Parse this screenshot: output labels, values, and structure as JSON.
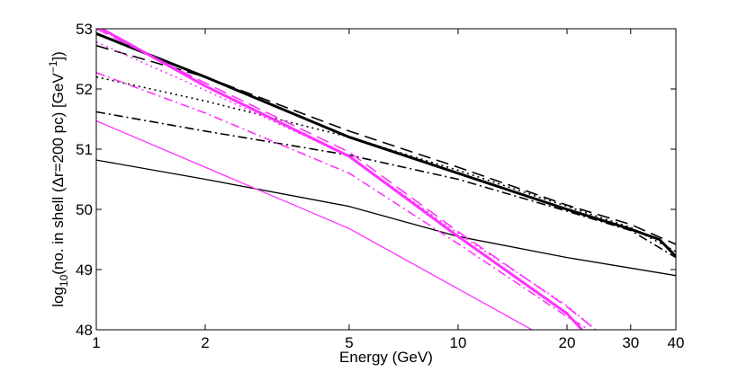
{
  "chart_data": {
    "type": "line",
    "title": "",
    "xlabel": "Energy (GeV)",
    "ylabel": "log10(no. in shell (Δr=200 pc) [GeV⁻¹])",
    "ylabel_parts": {
      "log": "log",
      "sub": "10",
      "mid": "(no. in shell (Δr=200 pc) [GeV",
      "sup": "−1",
      "end": "])"
    },
    "xscale": "log",
    "xlim": [
      1,
      40
    ],
    "ylim": [
      48,
      53
    ],
    "xticks": [
      1,
      2,
      5,
      10,
      20,
      30,
      40
    ],
    "xtick_labels": [
      "1",
      "2",
      "5",
      "10",
      "20",
      "30",
      "40"
    ],
    "yticks": [
      48,
      49,
      50,
      51,
      52,
      53
    ],
    "ytick_labels": [
      "48",
      "49",
      "50",
      "51",
      "52",
      "53"
    ],
    "grid": false,
    "legend": "none",
    "colors": {
      "black": "#000000",
      "magenta": "#ff33ff"
    },
    "series": [
      {
        "name": "black-thick-solid",
        "color": "black",
        "style": "solid",
        "weight": "thick",
        "x": [
          1,
          2,
          5,
          10,
          20,
          30,
          36,
          40
        ],
        "y": [
          52.92,
          52.2,
          51.2,
          50.6,
          50.0,
          49.67,
          49.5,
          49.22
        ]
      },
      {
        "name": "black-dashed",
        "color": "black",
        "style": "dashed",
        "weight": "normal",
        "x": [
          1,
          2,
          5,
          10,
          20,
          30,
          40
        ],
        "y": [
          52.72,
          52.2,
          51.3,
          50.7,
          50.07,
          49.75,
          49.42
        ]
      },
      {
        "name": "black-dotted",
        "color": "black",
        "style": "dotted",
        "weight": "normal",
        "x": [
          1,
          2,
          5,
          10,
          20,
          30,
          40
        ],
        "y": [
          52.2,
          51.8,
          51.2,
          50.65,
          50.05,
          49.7,
          49.3
        ]
      },
      {
        "name": "black-dashdot",
        "color": "black",
        "style": "dashdot",
        "weight": "normal",
        "x": [
          1,
          2,
          5,
          10,
          20,
          30,
          40
        ],
        "y": [
          51.62,
          51.3,
          50.9,
          50.5,
          49.97,
          49.65,
          49.2
        ]
      },
      {
        "name": "black-thin-solid",
        "color": "black",
        "style": "solid",
        "weight": "thin",
        "x": [
          1,
          2,
          5,
          10,
          20,
          40
        ],
        "y": [
          50.82,
          50.5,
          50.05,
          49.55,
          49.2,
          48.9
        ]
      },
      {
        "name": "magenta-thick-solid",
        "color": "magenta",
        "style": "solid",
        "weight": "thick",
        "x": [
          1,
          2,
          5,
          10,
          20,
          22
        ],
        "y": [
          53.05,
          52.05,
          50.88,
          49.55,
          48.27,
          48.0
        ]
      },
      {
        "name": "magenta-dashed",
        "color": "magenta",
        "style": "dashed",
        "weight": "normal",
        "x": [
          1,
          2,
          5,
          10,
          20,
          24
        ],
        "y": [
          53.0,
          52.1,
          50.95,
          49.63,
          48.38,
          48.0
        ]
      },
      {
        "name": "magenta-dotted",
        "color": "magenta",
        "style": "dotted",
        "weight": "normal",
        "x": [
          1,
          2,
          5,
          10,
          20,
          24
        ],
        "y": [
          52.78,
          51.98,
          50.88,
          49.6,
          48.4,
          48.0
        ]
      },
      {
        "name": "magenta-dashdot",
        "color": "magenta",
        "style": "dashdot",
        "weight": "normal",
        "x": [
          1,
          2,
          5,
          10,
          20,
          23
        ],
        "y": [
          52.27,
          51.6,
          50.6,
          49.43,
          48.22,
          48.0
        ]
      },
      {
        "name": "magenta-thin-solid",
        "color": "magenta",
        "style": "solid",
        "weight": "thin",
        "x": [
          1,
          2,
          5,
          10,
          16
        ],
        "y": [
          51.47,
          50.7,
          49.68,
          48.68,
          48.0
        ]
      }
    ]
  }
}
